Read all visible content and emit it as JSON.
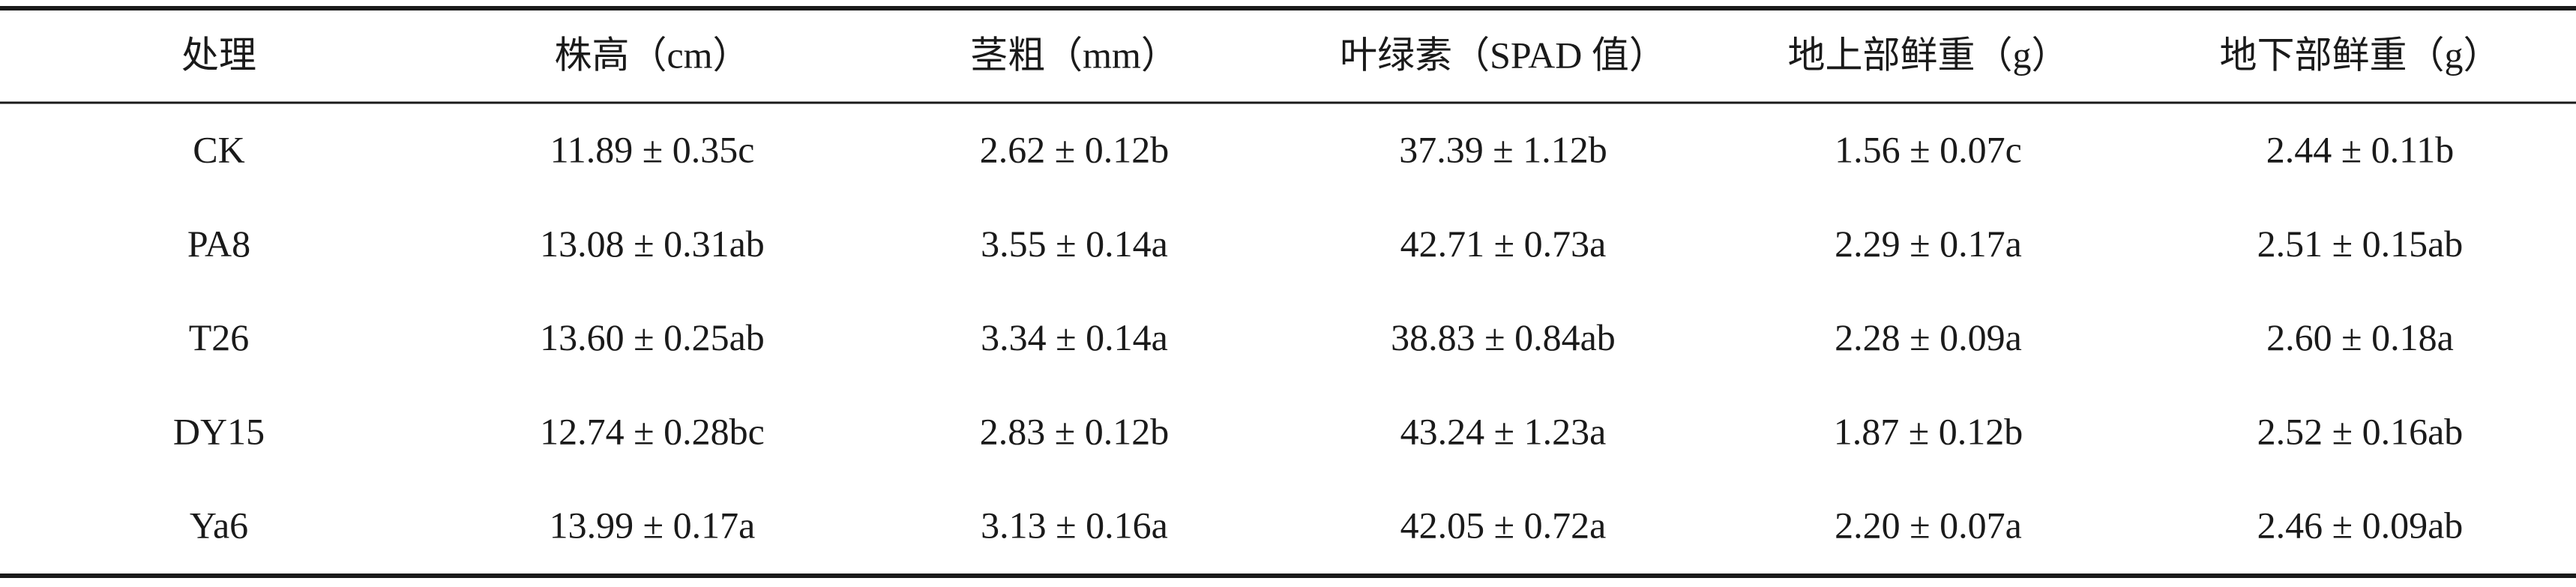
{
  "table": {
    "header": [
      "处理",
      "株高（cm）",
      "茎粗（mm）",
      "叶绿素（SPAD 值）",
      "地上部鲜重（g）",
      "地下部鲜重（g）"
    ],
    "rows": [
      [
        "CK",
        "11.89 ± 0.35c",
        "2.62 ± 0.12b",
        "37.39 ± 1.12b",
        "1.56 ± 0.07c",
        "2.44 ± 0.11b"
      ],
      [
        "PA8",
        "13.08 ± 0.31ab",
        "3.55 ± 0.14a",
        "42.71 ± 0.73a",
        "2.29 ± 0.17a",
        "2.51 ± 0.15ab"
      ],
      [
        "T26",
        "13.60 ± 0.25ab",
        "3.34 ± 0.14a",
        "38.83 ± 0.84ab",
        "2.28 ± 0.09a",
        "2.60 ± 0.18a"
      ],
      [
        "DY15",
        "12.74 ± 0.28bc",
        "2.83 ± 0.12b",
        "43.24 ± 1.23a",
        "1.87 ± 0.12b",
        "2.52 ± 0.16ab"
      ],
      [
        "Ya6",
        "13.99 ± 0.17a",
        "3.13 ± 0.16a",
        "42.05 ± 0.72a",
        "2.20 ± 0.07a",
        "2.46 ± 0.09ab"
      ]
    ]
  }
}
